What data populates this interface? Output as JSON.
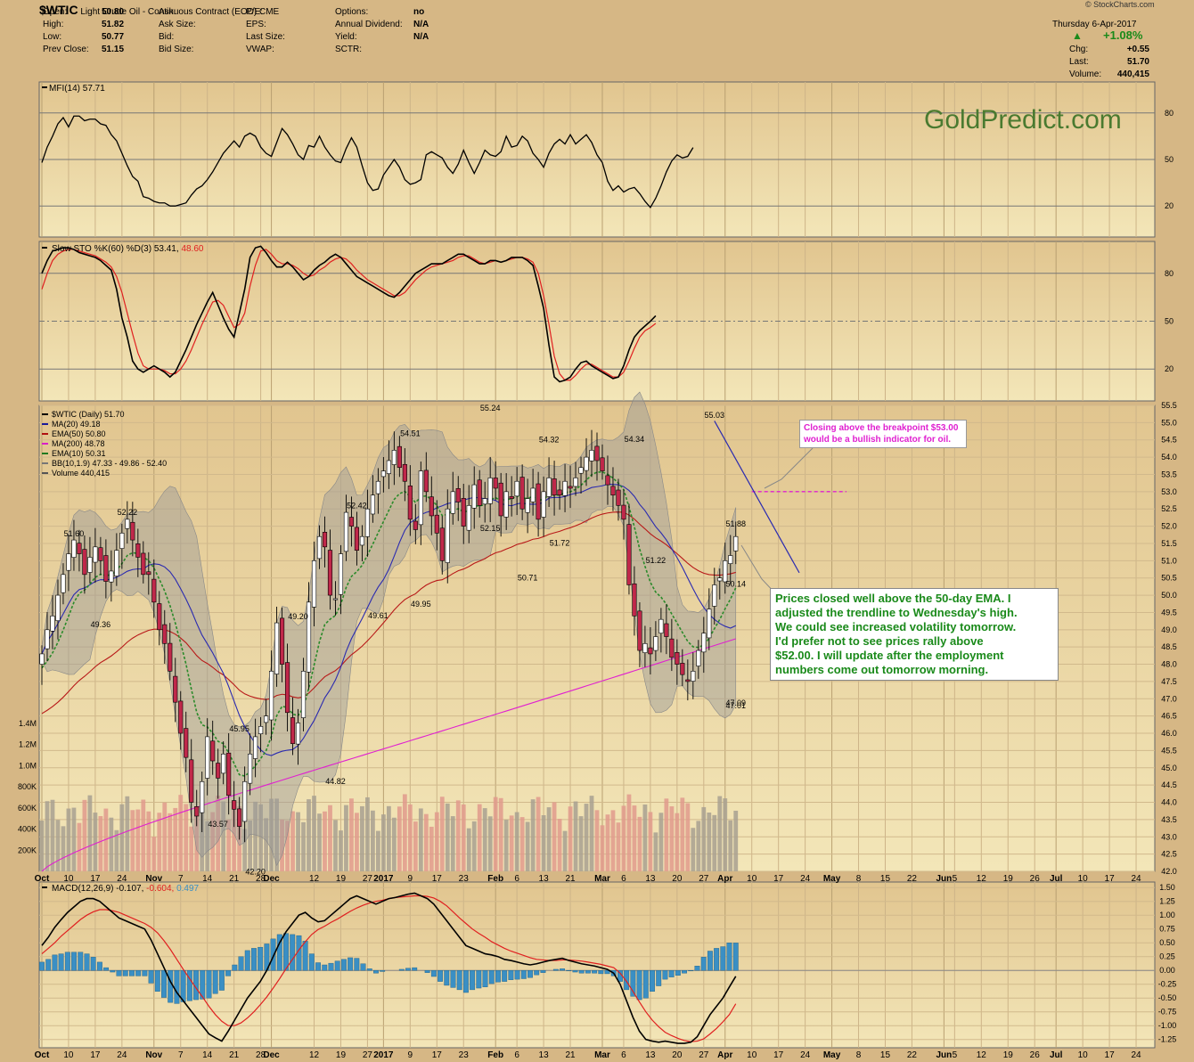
{
  "header": {
    "symbol": "$WTIC",
    "description": "Light Crude Oil - Continuous Contract (EOD)",
    "exchange": "CME",
    "credit": "© StockCharts.com",
    "date_line": "Thursday  6-Apr-2017",
    "change_pct": "+1.08%",
    "quote_left": [
      {
        "label": "Open:",
        "value": "50.80"
      },
      {
        "label": "High:",
        "value": "51.82"
      },
      {
        "label": "Low:",
        "value": "50.77"
      },
      {
        "label": "Prev Close:",
        "value": "51.15"
      }
    ],
    "quote_mid": [
      "Ask:",
      "Ask Size:",
      "Bid:",
      "Bid Size:"
    ],
    "quote_mid2": [
      "P/E:",
      "EPS:",
      "Last Size:",
      "VWAP:"
    ],
    "quote_right": [
      {
        "label": "Options:",
        "value": "no"
      },
      {
        "label": "Annual Dividend:",
        "value": "N/A"
      },
      {
        "label": "Yield:",
        "value": "N/A"
      },
      {
        "label": "SCTR:",
        "value": ""
      }
    ],
    "quote_far": [
      {
        "label": "Chg:",
        "value": "+0.55"
      },
      {
        "label": "Last:",
        "value": "51.70"
      },
      {
        "label": "Volume:",
        "value": "440,415"
      }
    ]
  },
  "watermark": "GoldPredict.com",
  "annotations": {
    "bullish": [
      "Closing above the breakpoint $53.00",
      "would be a bullish indicator for oil."
    ],
    "commentary": [
      "Prices closed well above the 50-day EMA. I",
      "adjusted the trendline to Wednesday's high.",
      "We could see increased volatility tomorrow.",
      "I'd prefer not to see prices rally above",
      "$52.00. I will update after the employment",
      "numbers come out tomorrow morning."
    ]
  },
  "chart_data": [
    {
      "type": "line",
      "panel": "MFI",
      "legend": "MFI(14) 57.71",
      "levels": [
        80,
        50,
        20
      ],
      "ylim": [
        0,
        100
      ],
      "values": [
        48,
        58,
        65,
        73,
        77,
        71,
        78,
        78,
        75,
        76,
        76,
        73,
        72,
        66,
        62,
        54,
        46,
        39,
        36,
        26,
        25,
        23,
        22,
        22,
        20,
        20,
        21,
        22,
        27,
        31,
        33,
        37,
        42,
        48,
        54,
        58,
        62,
        58,
        65,
        67,
        65,
        58,
        54,
        52,
        61,
        70,
        66,
        60,
        53,
        50,
        59,
        58,
        65,
        58,
        53,
        49,
        48,
        57,
        64,
        58,
        46,
        35,
        30,
        31,
        40,
        45,
        50,
        45,
        37,
        34,
        35,
        37,
        53,
        55,
        53,
        51,
        45,
        41,
        47,
        56,
        48,
        41,
        48,
        56,
        53,
        52,
        55,
        65,
        58,
        59,
        65,
        62,
        54,
        50,
        45,
        54,
        60,
        63,
        60,
        66,
        60,
        63,
        66,
        61,
        53,
        48,
        36,
        30,
        33,
        29,
        31,
        32,
        28,
        23,
        19,
        25,
        33,
        42,
        49,
        53,
        51,
        52,
        57.7
      ]
    },
    {
      "type": "line",
      "panel": "Slow STO",
      "legend_prefix": "Slow STO %K(60) %D(3) 53.41,",
      "legend_d": "48.60",
      "levels": [
        80,
        50,
        20
      ],
      "ylim": [
        0,
        100
      ],
      "k": [
        80,
        88,
        94,
        95,
        96,
        96,
        95,
        93,
        92,
        91,
        90,
        88,
        85,
        82,
        70,
        52,
        40,
        25,
        20,
        18,
        20,
        22,
        20,
        18,
        15,
        18,
        25,
        32,
        40,
        48,
        55,
        62,
        68,
        60,
        52,
        45,
        40,
        55,
        70,
        90,
        96,
        97,
        93,
        88,
        84,
        84,
        87,
        84,
        80,
        76,
        78,
        82,
        85,
        87,
        90,
        92,
        90,
        86,
        82,
        78,
        76,
        74,
        72,
        70,
        68,
        66,
        65,
        68,
        72,
        76,
        80,
        82,
        84,
        86,
        86,
        86,
        88,
        90,
        92,
        92,
        90,
        88,
        86,
        86,
        88,
        88,
        87,
        88,
        90,
        90,
        90,
        88,
        85,
        72,
        58,
        35,
        15,
        12,
        13,
        15,
        20,
        24,
        25,
        22,
        20,
        18,
        16,
        14,
        15,
        22,
        32,
        40,
        44,
        47,
        50,
        53.4
      ],
      "d": [
        70,
        80,
        88,
        92,
        94,
        95,
        95,
        94,
        93,
        92,
        91,
        89,
        87,
        84,
        78,
        68,
        55,
        42,
        30,
        22,
        20,
        20,
        20,
        19,
        17,
        17,
        20,
        25,
        32,
        40,
        48,
        55,
        62,
        63,
        60,
        53,
        46,
        48,
        55,
        72,
        85,
        94,
        95,
        92,
        88,
        86,
        86,
        85,
        83,
        80,
        78,
        79,
        82,
        84,
        87,
        89,
        90,
        89,
        86,
        82,
        79,
        76,
        74,
        72,
        70,
        68,
        66,
        66,
        68,
        72,
        76,
        79,
        82,
        84,
        85,
        86,
        87,
        88,
        90,
        91,
        91,
        89,
        87,
        86,
        87,
        88,
        87,
        88,
        89,
        90,
        90,
        89,
        87,
        80,
        66,
        48,
        28,
        17,
        13,
        13,
        16,
        20,
        23,
        23,
        21,
        19,
        17,
        15,
        15,
        18,
        25,
        33,
        40,
        44,
        46,
        48.6
      ]
    },
    {
      "type": "candlestick",
      "panel": "Price",
      "legend": [
        {
          "text": "$WTIC (Daily) 51.70",
          "color": "#000000"
        },
        {
          "text": "MA(20) 49.18",
          "color": "#1a1a9a"
        },
        {
          "text": "EMA(50) 50.80",
          "color": "#b01010"
        },
        {
          "text": "MA(200) 48.78",
          "color": "#d820c8"
        },
        {
          "text": "EMA(10) 50.31",
          "color": "#207a20"
        },
        {
          "text": "BB(10,1.9) 47.33 - 49.86 - 52.40",
          "color": "#777777"
        },
        {
          "text": "Volume 440,415",
          "color": "#555555"
        }
      ],
      "ylim": [
        42,
        55.5
      ],
      "yticks": [
        "55.5",
        "55.0",
        "54.5",
        "54.0",
        "53.5",
        "53.0",
        "52.5",
        "52.0",
        "51.5",
        "51.0",
        "50.5",
        "50.0",
        "49.5",
        "49.0",
        "48.5",
        "48.0",
        "47.5",
        "47.0",
        "46.5",
        "46.0",
        "45.5",
        "45.0",
        "44.5",
        "44.0",
        "43.5",
        "43.0",
        "42.5",
        "42.0"
      ],
      "volume_ticks": [
        "1.4M",
        "1.2M",
        "1.0M",
        "800K",
        "600K",
        "400K",
        "200K"
      ],
      "closes": [
        48.3,
        49.0,
        49.4,
        50.0,
        50.6,
        51.2,
        51.6,
        51.2,
        50.6,
        51.1,
        51.4,
        51.0,
        50.4,
        50.7,
        51.3,
        51.8,
        52.2,
        51.6,
        51.1,
        50.6,
        50.6,
        49.8,
        49.0,
        48.6,
        47.8,
        46.9,
        46.0,
        45.3,
        44.0,
        43.6,
        44.6,
        45.9,
        45.2,
        44.7,
        45.4,
        44.2,
        43.8,
        43.3,
        44.6,
        45.4,
        45.9,
        46.2,
        46.5,
        47.8,
        49.2,
        48.0,
        46.6,
        45.7,
        46.3,
        47.8,
        49.8,
        51.0,
        51.7,
        51.4,
        50.0,
        49.9,
        51.2,
        52.4,
        52.0,
        51.3,
        51.7,
        52.5,
        52.9,
        53.3,
        53.6,
        53.9,
        54.2,
        53.7,
        53.3,
        52.2,
        51.9,
        53.6,
        53.0,
        52.3,
        51.8,
        51.0,
        52.5,
        53.0,
        52.7,
        52.0,
        52.6,
        53.2,
        52.6,
        52.8,
        53.4,
        53.1,
        52.3,
        53.0,
        52.8,
        53.3,
        52.5,
        52.8,
        53.1,
        52.2,
        53.0,
        53.4,
        52.9,
        52.9,
        53.3,
        53.1,
        53.4,
        53.7,
        54.0,
        54.2,
        53.9,
        53.6,
        53.2,
        52.9,
        52.6,
        52.2,
        50.3,
        49.4,
        48.4,
        48.6,
        48.3,
        48.8,
        49.3,
        48.8,
        48.2,
        48.0,
        47.7,
        47.5,
        47.8,
        48.4,
        48.9,
        49.6,
        50.3,
        50.5,
        51.0,
        51.15,
        51.7
      ],
      "labels": [
        {
          "text": "51.60",
          "i": 6,
          "v": 51.6,
          "pos": "above"
        },
        {
          "text": "52.22",
          "i": 16,
          "v": 52.22,
          "pos": "above"
        },
        {
          "text": "49.36",
          "i": 11,
          "v": 49.36,
          "pos": "below"
        },
        {
          "text": "45.95",
          "i": 37,
          "v": 45.95,
          "pos": "above"
        },
        {
          "text": "43.57",
          "i": 33,
          "v": 43.57,
          "pos": "below"
        },
        {
          "text": "42.20",
          "i": 40,
          "v": 42.2,
          "pos": "below"
        },
        {
          "text": "49.20",
          "i": 48,
          "v": 49.2,
          "pos": "above"
        },
        {
          "text": "44.82",
          "i": 55,
          "v": 44.82,
          "pos": "below"
        },
        {
          "text": "52.42",
          "i": 59,
          "v": 52.42,
          "pos": "above"
        },
        {
          "text": "49.61",
          "i": 63,
          "v": 49.61,
          "pos": "below"
        },
        {
          "text": "54.51",
          "i": 69,
          "v": 54.51,
          "pos": "above"
        },
        {
          "text": "49.95",
          "i": 71,
          "v": 49.95,
          "pos": "below"
        },
        {
          "text": "55.24",
          "i": 84,
          "v": 55.24,
          "pos": "above"
        },
        {
          "text": "52.15",
          "i": 84,
          "v": 52.15,
          "pos": "below"
        },
        {
          "text": "50.71",
          "i": 91,
          "v": 50.71,
          "pos": "below"
        },
        {
          "text": "54.32",
          "i": 95,
          "v": 54.32,
          "pos": "above"
        },
        {
          "text": "51.72",
          "i": 97,
          "v": 51.72,
          "pos": "below"
        },
        {
          "text": "54.34",
          "i": 111,
          "v": 54.34,
          "pos": "above"
        },
        {
          "text": "51.22",
          "i": 115,
          "v": 51.22,
          "pos": "below"
        },
        {
          "text": "55.03",
          "i": 126,
          "v": 55.03,
          "pos": "above"
        },
        {
          "text": "50.14",
          "i": 147,
          "v": 50.14,
          "pos": "above"
        },
        {
          "text": "47.09",
          "i": 141,
          "v": 47.09,
          "pos": "below"
        },
        {
          "text": "47.01",
          "i": 153,
          "v": 47.01,
          "pos": "below"
        },
        {
          "text": "51.88",
          "i": 164,
          "v": 51.88,
          "pos": "above"
        }
      ],
      "breakpoint": 53.0
    },
    {
      "type": "line",
      "panel": "MACD",
      "legend_prefix": "MACD(12,26,9)",
      "legend_macd": "-0.107,",
      "legend_signal": "-0.604,",
      "legend_hist": "0.497",
      "ylim": [
        -1.4,
        1.6
      ],
      "yticks": [
        "1.50",
        "1.25",
        "1.00",
        "0.75",
        "0.50",
        "0.25",
        "0.00",
        "-0.25",
        "-0.50",
        "-0.75",
        "-1.00",
        "-1.25"
      ],
      "macd": [
        0.45,
        0.6,
        0.78,
        0.92,
        1.05,
        1.15,
        1.25,
        1.3,
        1.3,
        1.25,
        1.15,
        1.05,
        0.95,
        0.9,
        0.85,
        0.8,
        0.75,
        0.55,
        0.3,
        0.05,
        -0.2,
        -0.4,
        -0.55,
        -0.7,
        -0.85,
        -1.0,
        -1.15,
        -1.22,
        -1.28,
        -1.1,
        -0.9,
        -0.7,
        -0.5,
        -0.35,
        -0.2,
        0.0,
        0.25,
        0.5,
        0.7,
        0.85,
        1.0,
        1.05,
        0.95,
        0.88,
        0.9,
        1.0,
        1.1,
        1.2,
        1.3,
        1.35,
        1.3,
        1.25,
        1.2,
        1.25,
        1.3,
        1.32,
        1.35,
        1.38,
        1.4,
        1.35,
        1.3,
        1.2,
        1.05,
        0.9,
        0.75,
        0.6,
        0.45,
        0.4,
        0.35,
        0.3,
        0.28,
        0.25,
        0.2,
        0.18,
        0.15,
        0.12,
        0.1,
        0.12,
        0.15,
        0.18,
        0.2,
        0.22,
        0.18,
        0.15,
        0.12,
        0.1,
        0.08,
        0.05,
        0.02,
        -0.05,
        -0.25,
        -0.55,
        -0.85,
        -1.1,
        -1.25,
        -1.28,
        -1.3,
        -1.28,
        -1.3,
        -1.32,
        -1.32,
        -1.3,
        -1.2,
        -1.0,
        -0.8,
        -0.65,
        -0.5,
        -0.3,
        -0.107
      ],
      "signal": [
        0.3,
        0.4,
        0.5,
        0.62,
        0.72,
        0.82,
        0.92,
        1.0,
        1.06,
        1.1,
        1.1,
        1.08,
        1.05,
        1.0,
        0.95,
        0.9,
        0.85,
        0.78,
        0.68,
        0.54,
        0.38,
        0.2,
        0.02,
        -0.15,
        -0.32,
        -0.48,
        -0.65,
        -0.8,
        -0.92,
        -1.0,
        -1.0,
        -0.95,
        -0.86,
        -0.75,
        -0.62,
        -0.48,
        -0.32,
        -0.15,
        0.03,
        0.2,
        0.37,
        0.52,
        0.65,
        0.74,
        0.8,
        0.87,
        0.93,
        1.0,
        1.07,
        1.13,
        1.18,
        1.22,
        1.25,
        1.27,
        1.3,
        1.32,
        1.33,
        1.34,
        1.35,
        1.35,
        1.34,
        1.31,
        1.25,
        1.17,
        1.06,
        0.95,
        0.85,
        0.75,
        0.67,
        0.6,
        0.52,
        0.46,
        0.4,
        0.35,
        0.31,
        0.27,
        0.23,
        0.2,
        0.19,
        0.18,
        0.18,
        0.19,
        0.19,
        0.18,
        0.17,
        0.15,
        0.13,
        0.11,
        0.08,
        0.05,
        -0.05,
        -0.2,
        -0.38,
        -0.57,
        -0.75,
        -0.9,
        -1.02,
        -1.12,
        -1.18,
        -1.23,
        -1.27,
        -1.29,
        -1.28,
        -1.24,
        -1.15,
        -1.05,
        -0.93,
        -0.8,
        -0.604
      ]
    }
  ],
  "x_axis": {
    "labels": [
      {
        "text": "Oct",
        "i": 0,
        "bold": true
      },
      {
        "text": "10",
        "i": 5
      },
      {
        "text": "17",
        "i": 10
      },
      {
        "text": "24",
        "i": 15
      },
      {
        "text": "Nov",
        "i": 21,
        "bold": true
      },
      {
        "text": "7",
        "i": 26
      },
      {
        "text": "14",
        "i": 31
      },
      {
        "text": "21",
        "i": 36
      },
      {
        "text": "28",
        "i": 41
      },
      {
        "text": "Dec",
        "i": 43,
        "bold": true
      },
      {
        "text": "12",
        "i": 51
      },
      {
        "text": "19",
        "i": 56
      },
      {
        "text": "27",
        "i": 61
      },
      {
        "text": "2017",
        "i": 64,
        "bold": true
      },
      {
        "text": "9",
        "i": 69
      },
      {
        "text": "17",
        "i": 74
      },
      {
        "text": "23",
        "i": 79
      },
      {
        "text": "Feb",
        "i": 85,
        "bold": true
      },
      {
        "text": "6",
        "i": 89
      },
      {
        "text": "13",
        "i": 94
      },
      {
        "text": "21",
        "i": 99
      },
      {
        "text": "Mar",
        "i": 105,
        "bold": true
      },
      {
        "text": "6",
        "i": 109
      },
      {
        "text": "13",
        "i": 114
      },
      {
        "text": "20",
        "i": 119
      },
      {
        "text": "27",
        "i": 124
      },
      {
        "text": "Apr",
        "i": 128,
        "bold": true
      },
      {
        "text": "10",
        "i": 133
      },
      {
        "text": "17",
        "i": 138
      },
      {
        "text": "24",
        "i": 143
      },
      {
        "text": "May",
        "i": 148,
        "bold": true
      },
      {
        "text": "8",
        "i": 153
      },
      {
        "text": "15",
        "i": 158
      },
      {
        "text": "22",
        "i": 163
      },
      {
        "text": "Jun",
        "i": 169,
        "bold": true
      },
      {
        "text": "5",
        "i": 171
      },
      {
        "text": "12",
        "i": 176
      },
      {
        "text": "19",
        "i": 181
      },
      {
        "text": "26",
        "i": 186
      },
      {
        "text": "Jul",
        "i": 190,
        "bold": true
      },
      {
        "text": "10",
        "i": 195
      },
      {
        "text": "17",
        "i": 200
      },
      {
        "text": "24",
        "i": 205
      }
    ]
  },
  "colors": {
    "panel_bg_top": "#e3c993",
    "panel_bg_bottom": "#f1e2b2",
    "up": "#ffffff",
    "down": "#c0284a",
    "ma20": "#2a2ab0",
    "ema50": "#b81818",
    "ma200": "#e020d0",
    "ema10": "#2a8a2a",
    "bb_fill": "#9a9a9a",
    "vol_up": "#a8a090",
    "vol_down": "#e09a8c",
    "macd_hist": "#3a8fc4",
    "watermark": "#4a7a30",
    "annotation_green": "#1a8a1a",
    "annotation_magenta": "#e020d0"
  }
}
